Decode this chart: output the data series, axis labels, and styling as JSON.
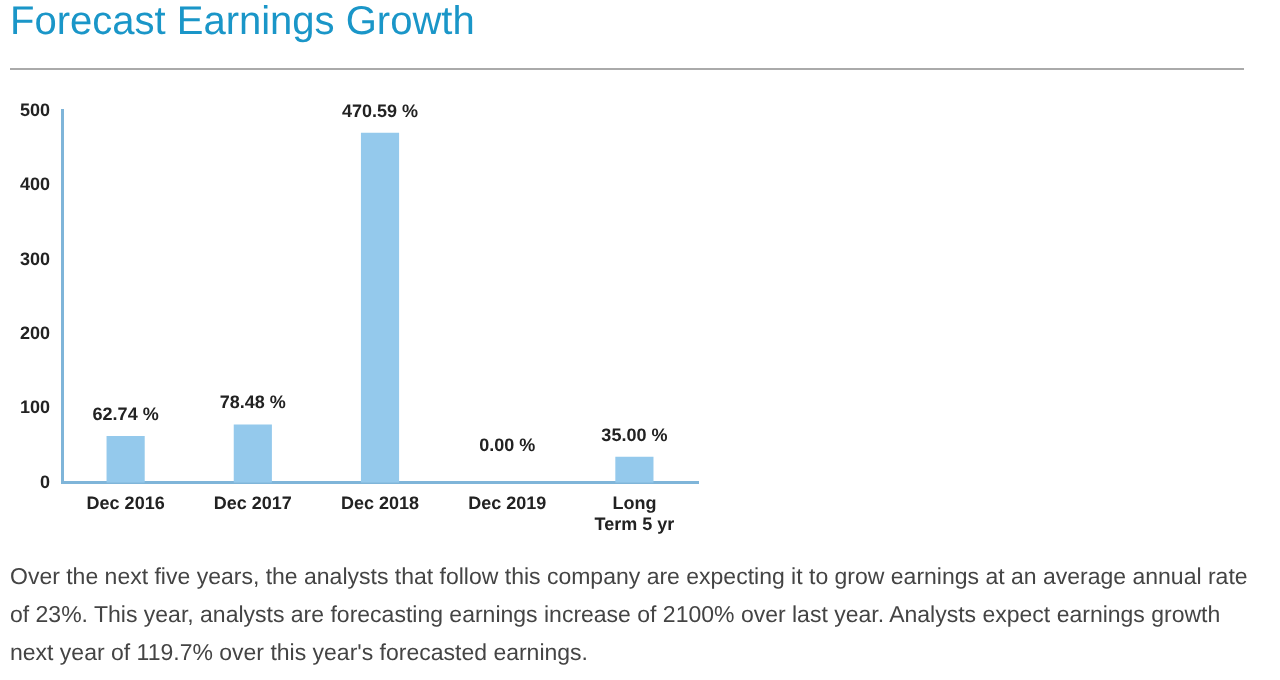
{
  "chart_data": {
    "type": "bar",
    "title": "Forecast Earnings Growth",
    "categories": [
      "Dec 2016",
      "Dec 2017",
      "Dec 2018",
      "Dec 2019",
      "Long\nTerm 5 yr"
    ],
    "values": [
      62.74,
      78.48,
      470.59,
      0,
      35
    ],
    "value_labels": [
      "62.74 %",
      "78.48 %",
      "470.59 %",
      "0.00 %",
      "35.00 %"
    ],
    "color": "#94c9ec",
    "ylim": [
      0,
      500
    ],
    "yticks": [
      0,
      100,
      200,
      300,
      400,
      500
    ],
    "grid": false,
    "legend": false,
    "annotations": [
      "Over the next five years, the analysts that follow this company are expecting it to grow earnings at an average annual rate of 23%. This year, analysts are forecasting earnings increase of 2100% over last year. Analysts expect earnings growth next year of 119.7% over this year's forecasted earnings."
    ]
  }
}
